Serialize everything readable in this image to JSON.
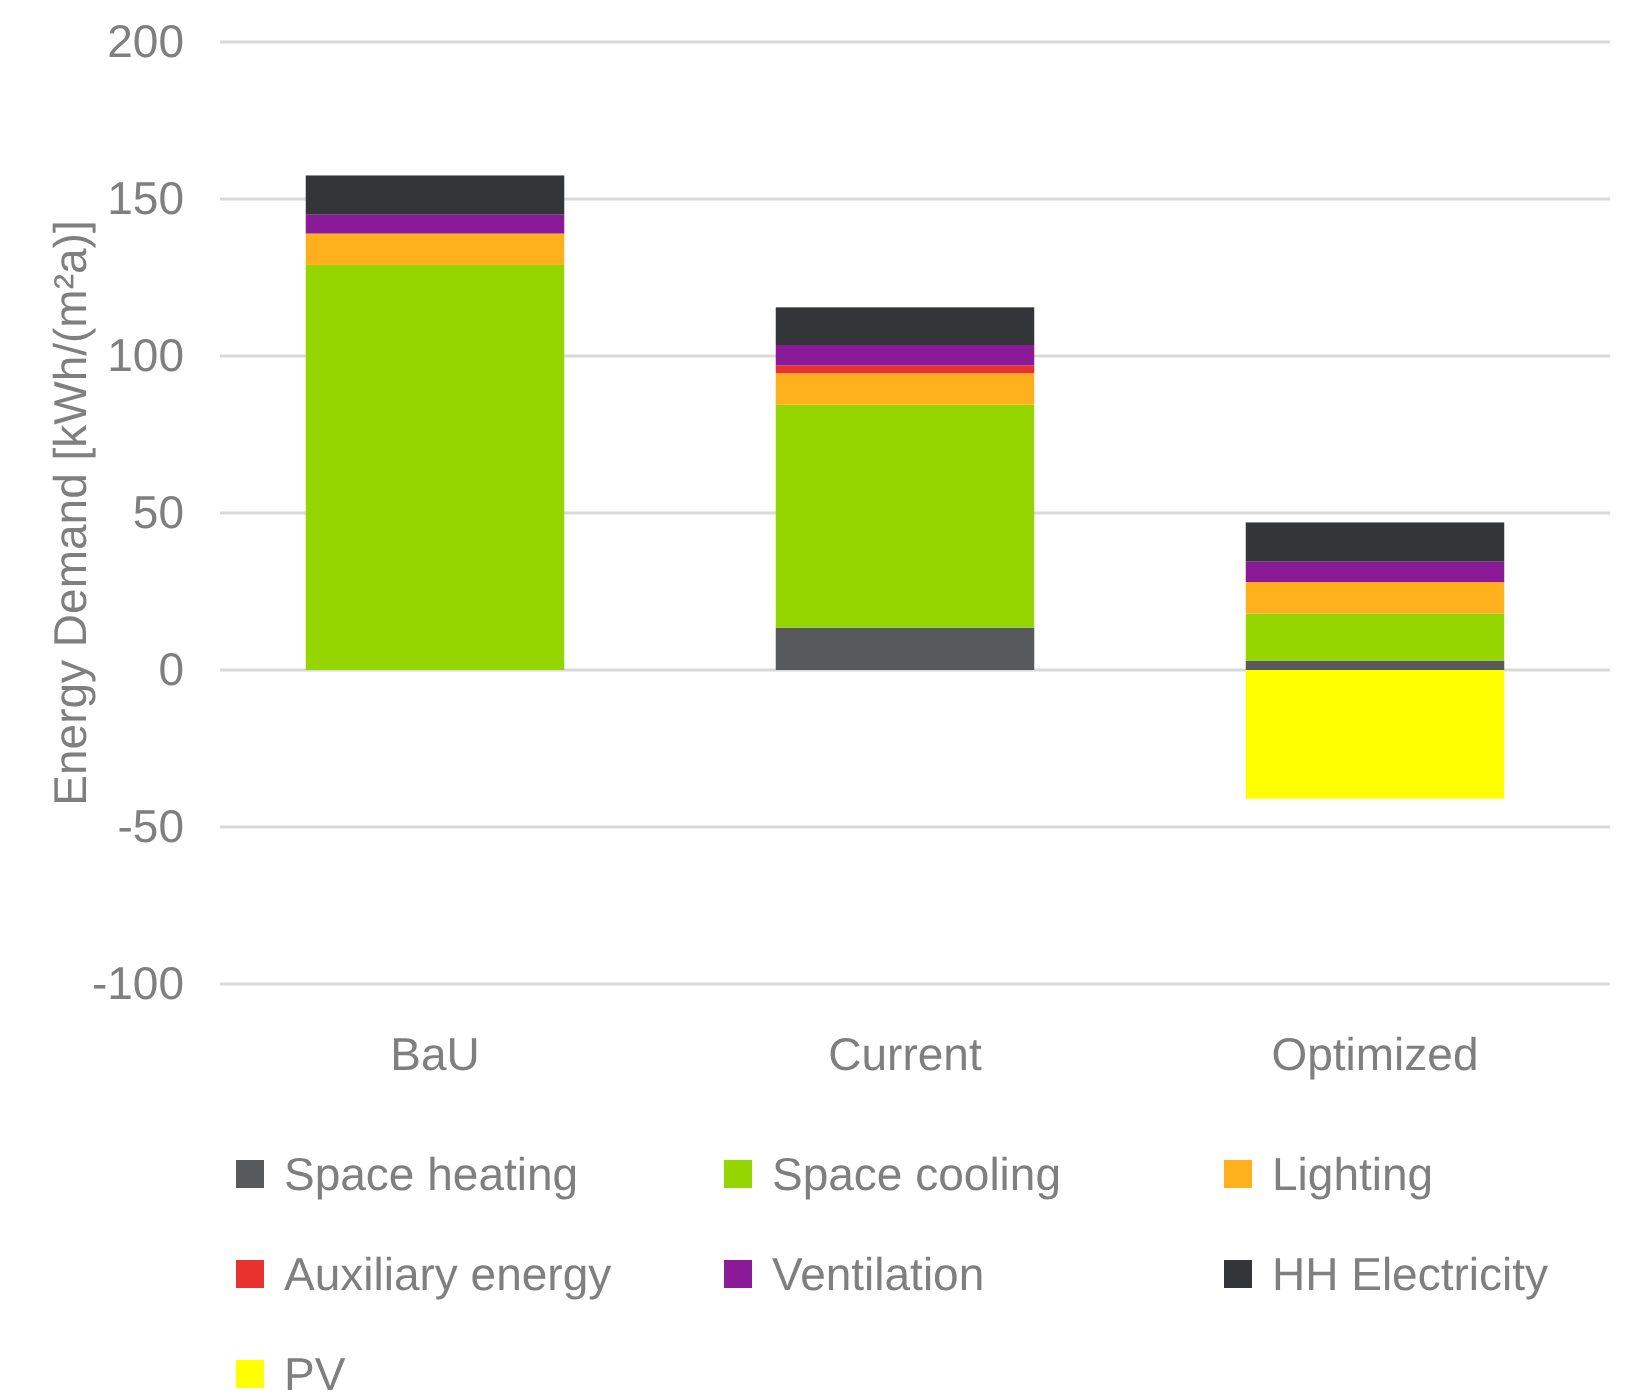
{
  "chart_data": {
    "type": "bar",
    "stacked": true,
    "ylabel": "Energy Demand [kWh/(m²a)]",
    "categories": [
      "BaU",
      "Current",
      "Optimized"
    ],
    "series": [
      {
        "name": "Space heating",
        "color": "#58595b",
        "values": [
          0,
          13.5,
          3
        ]
      },
      {
        "name": "Space cooling",
        "color": "#96d600",
        "values": [
          129,
          71,
          15
        ]
      },
      {
        "name": "Lighting",
        "color": "#ffb01c",
        "values": [
          10,
          10,
          10
        ]
      },
      {
        "name": "Auxiliary energy",
        "color": "#e8322d",
        "values": [
          0,
          2.5,
          0
        ]
      },
      {
        "name": "Ventilation",
        "color": "#8b1a98",
        "values": [
          6,
          6.5,
          6.5
        ]
      },
      {
        "name": "HH Electricity",
        "color": "#333538",
        "values": [
          12.5,
          12,
          12.5
        ]
      },
      {
        "name": "PV",
        "color": "#ffff00",
        "values": [
          0,
          0,
          -41
        ]
      }
    ],
    "ylim": [
      -100,
      200
    ],
    "yticks": [
      -100,
      -50,
      0,
      50,
      100,
      150,
      200
    ],
    "grid": "y",
    "legend": "bottom"
  }
}
